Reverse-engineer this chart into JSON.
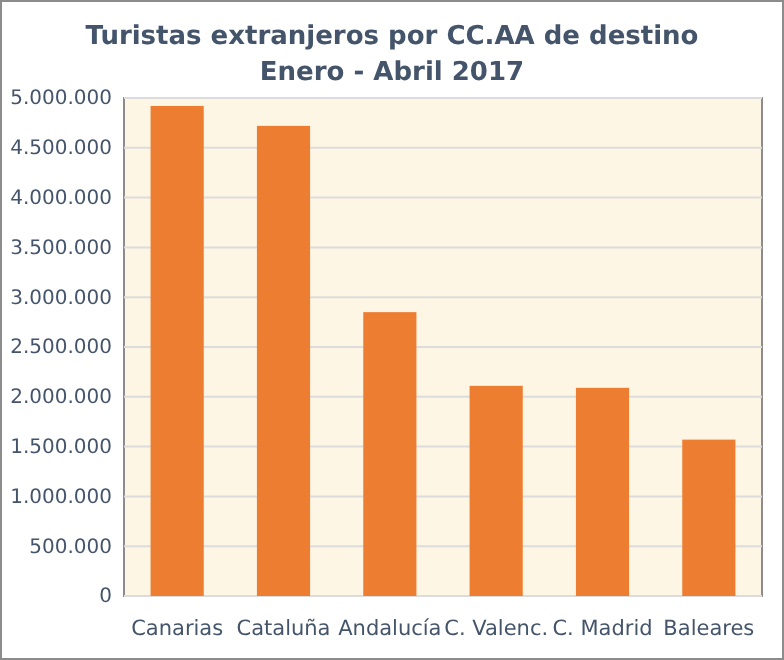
{
  "chart_data": {
    "type": "bar",
    "title": "Turistas extranjeros por CC.AA de destino",
    "subtitle": "Enero - Abril 2017",
    "categories": [
      "Canarias",
      "Cataluña",
      "Andalucía",
      "C. Valenc.",
      "C. Madrid",
      "Baleares"
    ],
    "values": [
      4920000,
      4720000,
      2850000,
      2110000,
      2090000,
      1570000
    ],
    "color": "#ed7d31",
    "ylim": [
      0,
      5000000
    ],
    "yticks": [
      {
        "value": 0,
        "label": "0"
      },
      {
        "value": 500000,
        "label": "500.000"
      },
      {
        "value": 1000000,
        "label": "1.000.000"
      },
      {
        "value": 1500000,
        "label": "1.500.000"
      },
      {
        "value": 2000000,
        "label": "2.000.000"
      },
      {
        "value": 2500000,
        "label": "2.500.000"
      },
      {
        "value": 3000000,
        "label": "3.000.000"
      },
      {
        "value": 3500000,
        "label": "3.500.000"
      },
      {
        "value": 4000000,
        "label": "4.000.000"
      },
      {
        "value": 4500000,
        "label": "4.500.000"
      },
      {
        "value": 5000000,
        "label": "5.000.000"
      }
    ],
    "grid": "y"
  }
}
